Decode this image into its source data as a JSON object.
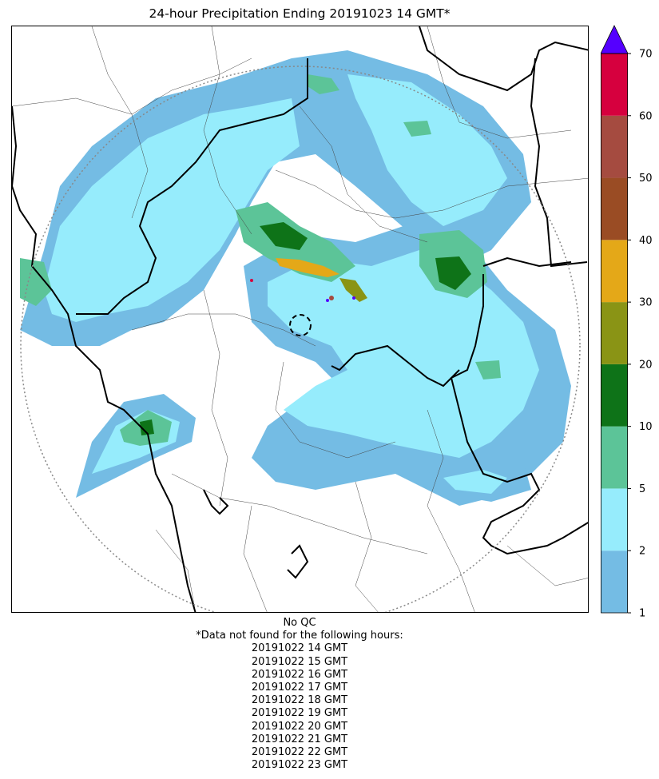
{
  "title": "24-hour Precipitation Ending 20191023 14 GMT*",
  "colorbar": {
    "bounds": [
      1,
      2,
      5,
      10,
      20,
      30,
      40,
      50,
      60,
      70
    ],
    "tick_labels": [
      "1",
      "2",
      "5",
      "10",
      "20",
      "30",
      "40",
      "50",
      "60",
      "70"
    ],
    "colors": [
      "#74bce4",
      "#96ecfc",
      "#5cc498",
      "#0e7318",
      "#8a9415",
      "#e4a818",
      "#9a4c24",
      "#a54b40",
      "#d6003e"
    ],
    "extend_color": "#5500ff"
  },
  "notes": {
    "qc": "No QC",
    "missing_header": "*Data not found for the following hours:",
    "missing_hours": [
      "20191022 14 GMT",
      "20191022 15 GMT",
      "20191022 16 GMT",
      "20191022 17 GMT",
      "20191022 18 GMT",
      "20191022 19 GMT",
      "20191022 20 GMT",
      "20191022 21 GMT",
      "20191022 22 GMT",
      "20191022 23 GMT"
    ]
  }
}
